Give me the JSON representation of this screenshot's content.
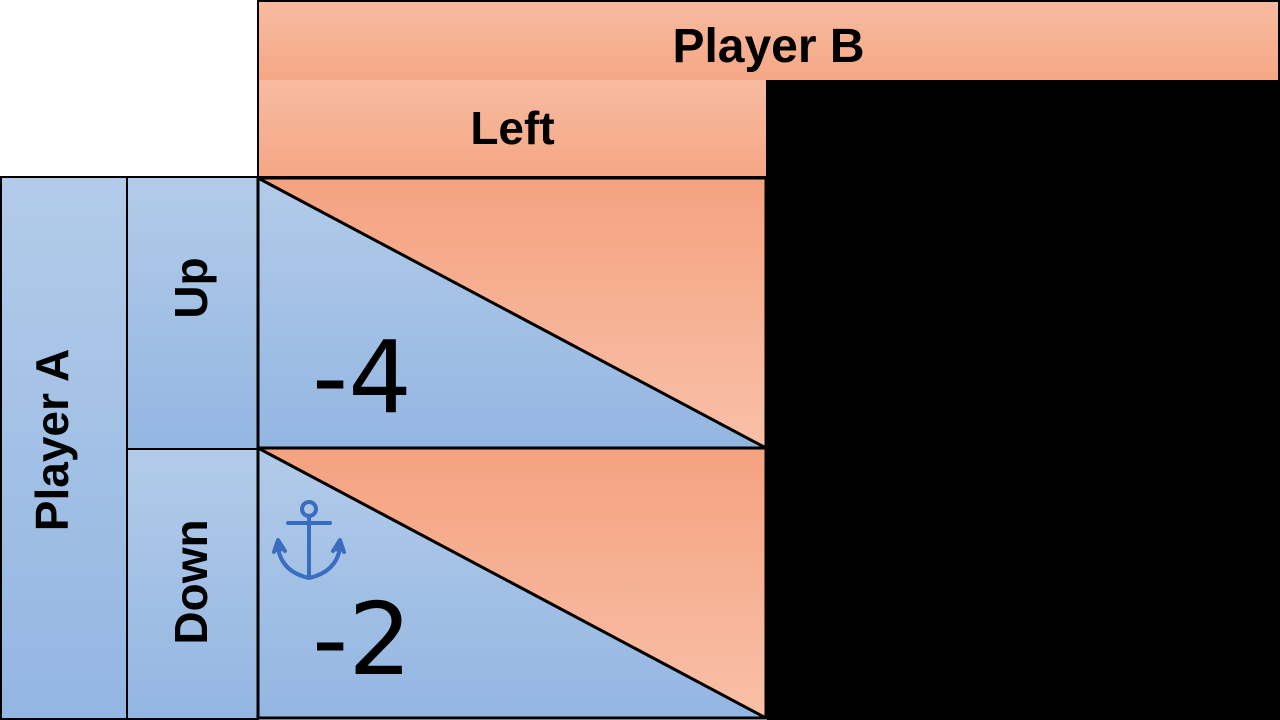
{
  "player_b": {
    "label": "Player B"
  },
  "player_a": {
    "label": "Player A"
  },
  "columns": [
    {
      "label": "Left"
    }
  ],
  "rows": [
    {
      "label": "Up",
      "payoff_a": "-4",
      "payoff_b": ""
    },
    {
      "label": "Down",
      "payoff_a": "-2",
      "payoff_b": ""
    }
  ],
  "icons": {
    "anchor": "anchor-icon"
  },
  "colors": {
    "orange_light": "#f7bba1",
    "orange_dark": "#f5a785",
    "blue_light": "#b2cbe9",
    "blue_dark": "#93b6e2",
    "anchor": "#3a6cc0",
    "border": "#000000"
  }
}
